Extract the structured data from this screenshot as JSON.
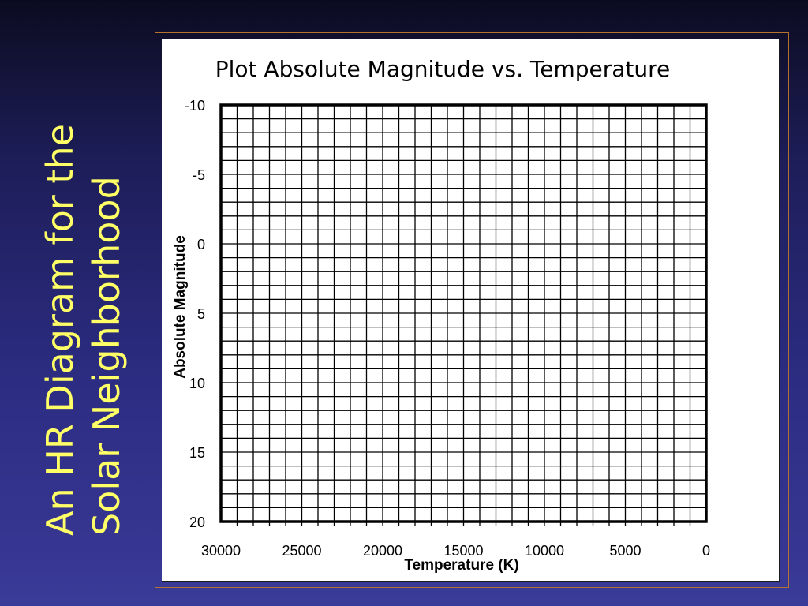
{
  "slide": {
    "title_line1": "An HR Diagram for the",
    "title_line2": "Solar Neighborhood"
  },
  "colors": {
    "title_text": "#ffff66",
    "frame_border": "#b5722e"
  },
  "chart_data": {
    "type": "scatter",
    "title": "Plot Absolute Magnitude vs. Temperature",
    "xlabel": "Temperature (K)",
    "ylabel": "Absolute Magnitude",
    "xlim": [
      30000,
      0
    ],
    "ylim": [
      -10,
      20
    ],
    "x_ticks": [
      "30000",
      "25000",
      "20000",
      "15000",
      "10000",
      "5000",
      "0"
    ],
    "y_ticks": [
      "-10",
      "-5",
      "0",
      "5",
      "10",
      "15",
      "20"
    ],
    "y_inverted": true,
    "grid": true,
    "grid_columns": 30,
    "grid_rows": 30,
    "series": []
  }
}
